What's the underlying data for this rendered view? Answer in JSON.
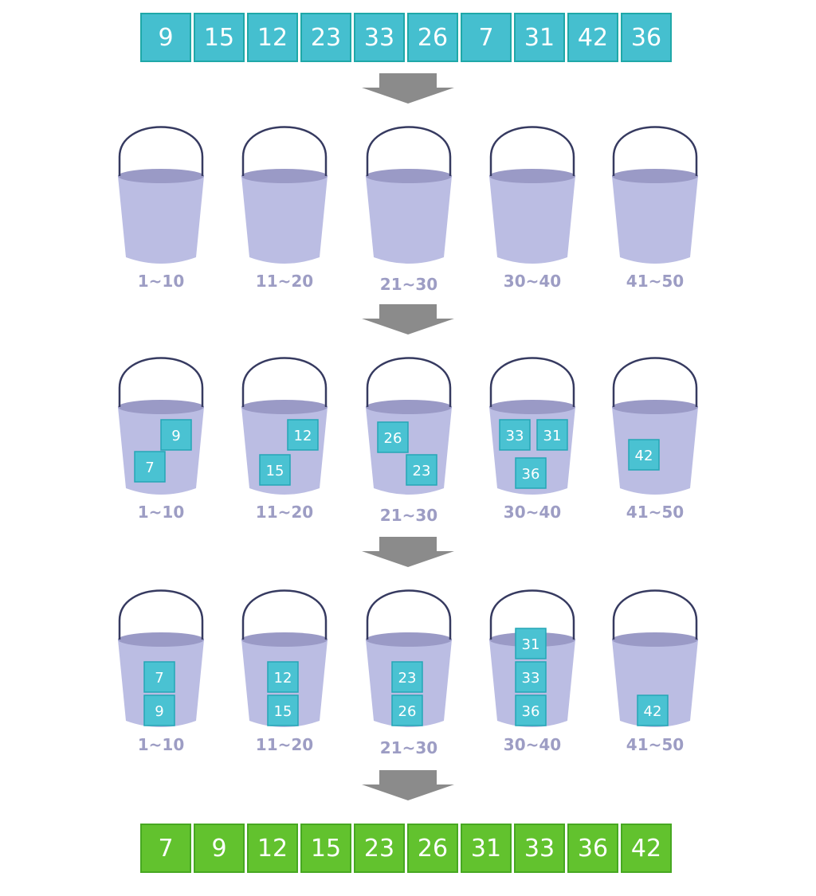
{
  "input_array": [
    "9",
    "15",
    "12",
    "23",
    "33",
    "26",
    "7",
    "31",
    "42",
    "36"
  ],
  "output_array": [
    "7",
    "9",
    "12",
    "15",
    "23",
    "26",
    "31",
    "33",
    "36",
    "42"
  ],
  "bucket_ranges": [
    "1~10",
    "11~20",
    "21~30",
    "30~40",
    "41~50"
  ],
  "scatter_stage": [
    [
      "9",
      "7"
    ],
    [
      "12",
      "15"
    ],
    [
      "26",
      "23"
    ],
    [
      "33",
      "31",
      "36"
    ],
    [
      "42"
    ]
  ],
  "sorted_stage": [
    [
      "7",
      "9"
    ],
    [
      "12",
      "15"
    ],
    [
      "23",
      "26"
    ],
    [
      "31",
      "33",
      "36"
    ],
    [
      "42"
    ]
  ],
  "colors": {
    "input_cell": "#45bfcf",
    "output_cell": "#62c22e",
    "bucket_body": "#bbbde3",
    "bucket_rim": "#9a9ac6",
    "bucket_handle": "#363a60",
    "arrow": "#8b8b8b",
    "label": "#9d9dc4"
  }
}
